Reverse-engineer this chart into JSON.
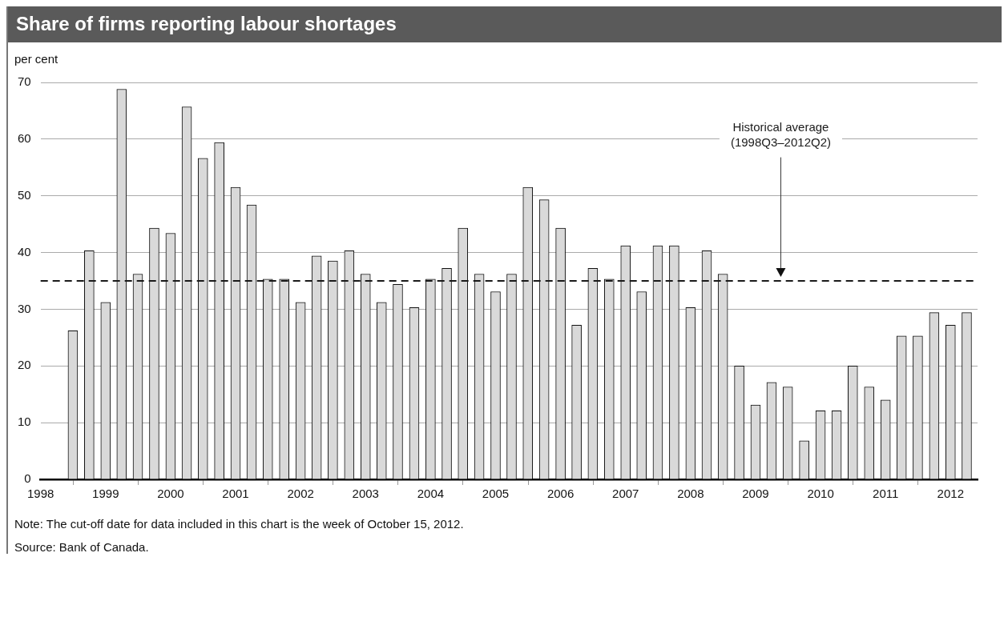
{
  "chart_data": {
    "type": "bar",
    "title": "Share of firms reporting labour shortages",
    "ylabel": "per cent",
    "x": [
      "1998-07",
      "1998-10",
      "1999-01",
      "1999-04",
      "1999-07",
      "1999-10",
      "2000-01",
      "2000-04",
      "2000-07",
      "2000-10",
      "2001-01",
      "2001-04",
      "2001-07",
      "2001-10",
      "2002-01",
      "2002-04",
      "2002-07",
      "2002-10",
      "2003-01",
      "2003-04",
      "2003-07",
      "2003-10",
      "2004-01",
      "2004-04",
      "2004-07",
      "2004-10",
      "2005-01",
      "2005-04",
      "2005-07",
      "2005-10",
      "2006-01",
      "2006-04",
      "2006-07",
      "2006-10",
      "2007-01",
      "2007-04",
      "2007-07",
      "2007-10",
      "2008-01",
      "2008-04",
      "2008-07",
      "2008-10",
      "2009-01",
      "2009-04",
      "2009-07",
      "2009-10",
      "2010-01",
      "2010-04",
      "2010-07",
      "2010-10",
      "2011-01",
      "2011-04",
      "2011-07",
      "2011-10",
      "2012-01",
      "2012-04"
    ],
    "values": [
      26.2,
      40.3,
      31.2,
      68.8,
      36.2,
      44.3,
      43.4,
      65.7,
      56.6,
      59.4,
      51.5,
      48.4,
      35.3,
      35.3,
      31.2,
      39.4,
      38.5,
      40.3,
      36.2,
      31.2,
      34.4,
      30.3,
      35.3,
      37.2,
      44.3,
      36.2,
      33.1,
      36.2,
      51.5,
      49.3,
      44.3,
      27.2,
      37.2,
      35.3,
      41.2,
      33.1,
      41.2,
      41.2,
      30.3,
      40.3,
      36.2,
      20,
      13.1,
      17.1,
      16.3,
      6.8,
      12.1,
      12.1,
      20,
      16.3,
      14,
      25.3,
      25.3,
      29.4,
      27.2,
      29.4
    ],
    "color": "#d9d9d9",
    "xlim": [
      "1998-01",
      "2012-06"
    ],
    "xticks": [
      "1998",
      "1999",
      "2000",
      "2001",
      "2002",
      "2003",
      "2004",
      "2005",
      "2006",
      "2007",
      "2008",
      "2009",
      "2010",
      "2011",
      "2012"
    ],
    "ylim": [
      0,
      70
    ],
    "yticks": [
      0,
      10,
      20,
      30,
      40,
      50,
      60,
      70
    ],
    "grid": "y",
    "ref_lines": [
      {
        "axis": "y",
        "value": 35,
        "label": "Historical average (1998Q3–2012Q2)",
        "color": "#1a1a1a",
        "line_style": "dashed"
      }
    ],
    "annotations": [
      "Note: The cut-off date for data included in this chart is the week of October 15, 2012.",
      "Source: Bank of Canada."
    ]
  }
}
